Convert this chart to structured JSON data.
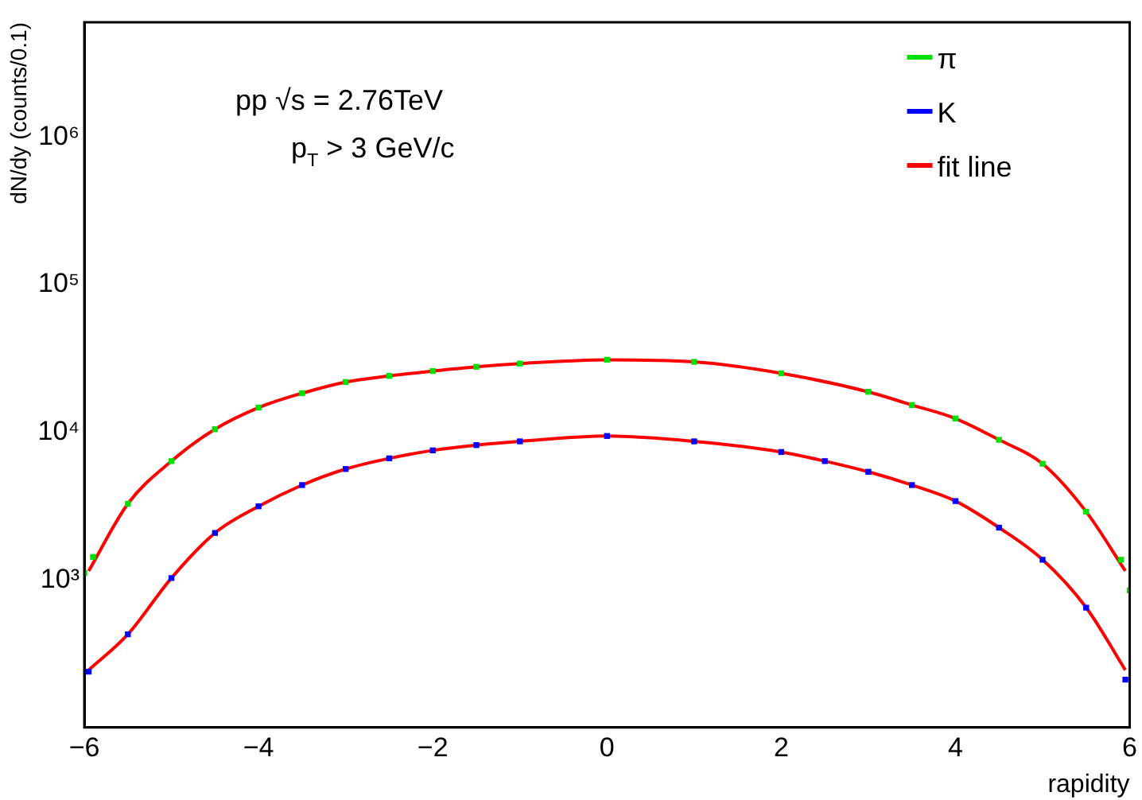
{
  "chart_data": {
    "type": "scatter",
    "xlabel": "rapidity",
    "ylabel": "dN/dy (counts/0.1)",
    "annotations": [
      "pp √s = 2.76TeV",
      "p$_{T}$ > 3 GeV/c"
    ],
    "xlim": [
      -6,
      6
    ],
    "xticks": [
      {
        "value": -6,
        "label": "−6"
      },
      {
        "value": -4,
        "label": "−4"
      },
      {
        "value": -2,
        "label": "−2"
      },
      0,
      2,
      4,
      6
    ],
    "ylim": [
      100,
      6000000
    ],
    "yticks": [
      {
        "value": 1000,
        "label": "10³"
      },
      {
        "value": 10000,
        "label": "10⁴"
      },
      {
        "value": 100000,
        "label": "10⁵"
      },
      {
        "value": 1000000,
        "label": "10⁶"
      }
    ],
    "log": "y",
    "grid": false,
    "legend": "top right",
    "marker": "square",
    "series": [
      {
        "name": "π",
        "color": "#00e000",
        "x": [
          -6,
          -5.9,
          -5.5,
          -5,
          -4.5,
          -4,
          -3.5,
          -3,
          -2.5,
          -2,
          -1.5,
          -1,
          0,
          1,
          2,
          3,
          3.5,
          4,
          4.5,
          5,
          5.5,
          5.9,
          6
        ],
        "values": [
          1110,
          1430,
          3280,
          6380,
          10500,
          14700,
          18400,
          21900,
          24100,
          26000,
          27800,
          29200,
          31000,
          30000,
          25100,
          18800,
          15300,
          12400,
          8890,
          6120,
          2900,
          1370,
          850
        ]
      },
      {
        "name": "K",
        "color": "#0000ff",
        "x": [
          -5.95,
          -5.5,
          -5,
          -4.5,
          -4,
          -3.5,
          -3,
          -2.5,
          -2,
          -1.5,
          -1,
          0,
          1,
          2,
          2.5,
          3,
          3.5,
          4,
          4.5,
          5,
          5.5,
          5.95
        ],
        "values": [
          239,
          428,
          1030,
          2080,
          3150,
          4390,
          5640,
          6660,
          7540,
          8190,
          8680,
          9440,
          8680,
          7350,
          6380,
          5400,
          4390,
          3420,
          2260,
          1370,
          649,
          211
        ]
      },
      {
        "name": "fit line",
        "type": "line",
        "marker": "none",
        "color": "#ff0000",
        "x": [
          -5.95,
          -5.5,
          -5,
          -4.5,
          -4,
          -3.5,
          -3,
          -2.5,
          -2,
          -1.5,
          -1,
          0,
          1,
          2,
          3,
          3.5,
          4,
          4.5,
          5,
          5.5,
          5.95
        ],
        "values": [
          1150,
          3280,
          6380,
          10500,
          14700,
          18400,
          21900,
          24100,
          26000,
          27800,
          29200,
          31000,
          30000,
          25100,
          18800,
          15300,
          12400,
          8890,
          6120,
          2900,
          1150
        ]
      },
      {
        "type": "line",
        "marker": "none",
        "color": "#ff0000",
        "x": [
          -5.95,
          -5.5,
          -5,
          -4.5,
          -4,
          -3.5,
          -3,
          -2.5,
          -2,
          -1.5,
          -1,
          0,
          1,
          2,
          2.5,
          3,
          3.5,
          4,
          4.5,
          5,
          5.5,
          5.95
        ],
        "values": [
          245,
          428,
          1030,
          2080,
          3150,
          4390,
          5640,
          6660,
          7540,
          8190,
          8680,
          9440,
          8680,
          7350,
          6380,
          5400,
          4390,
          3420,
          2260,
          1370,
          649,
          245
        ]
      }
    ]
  }
}
